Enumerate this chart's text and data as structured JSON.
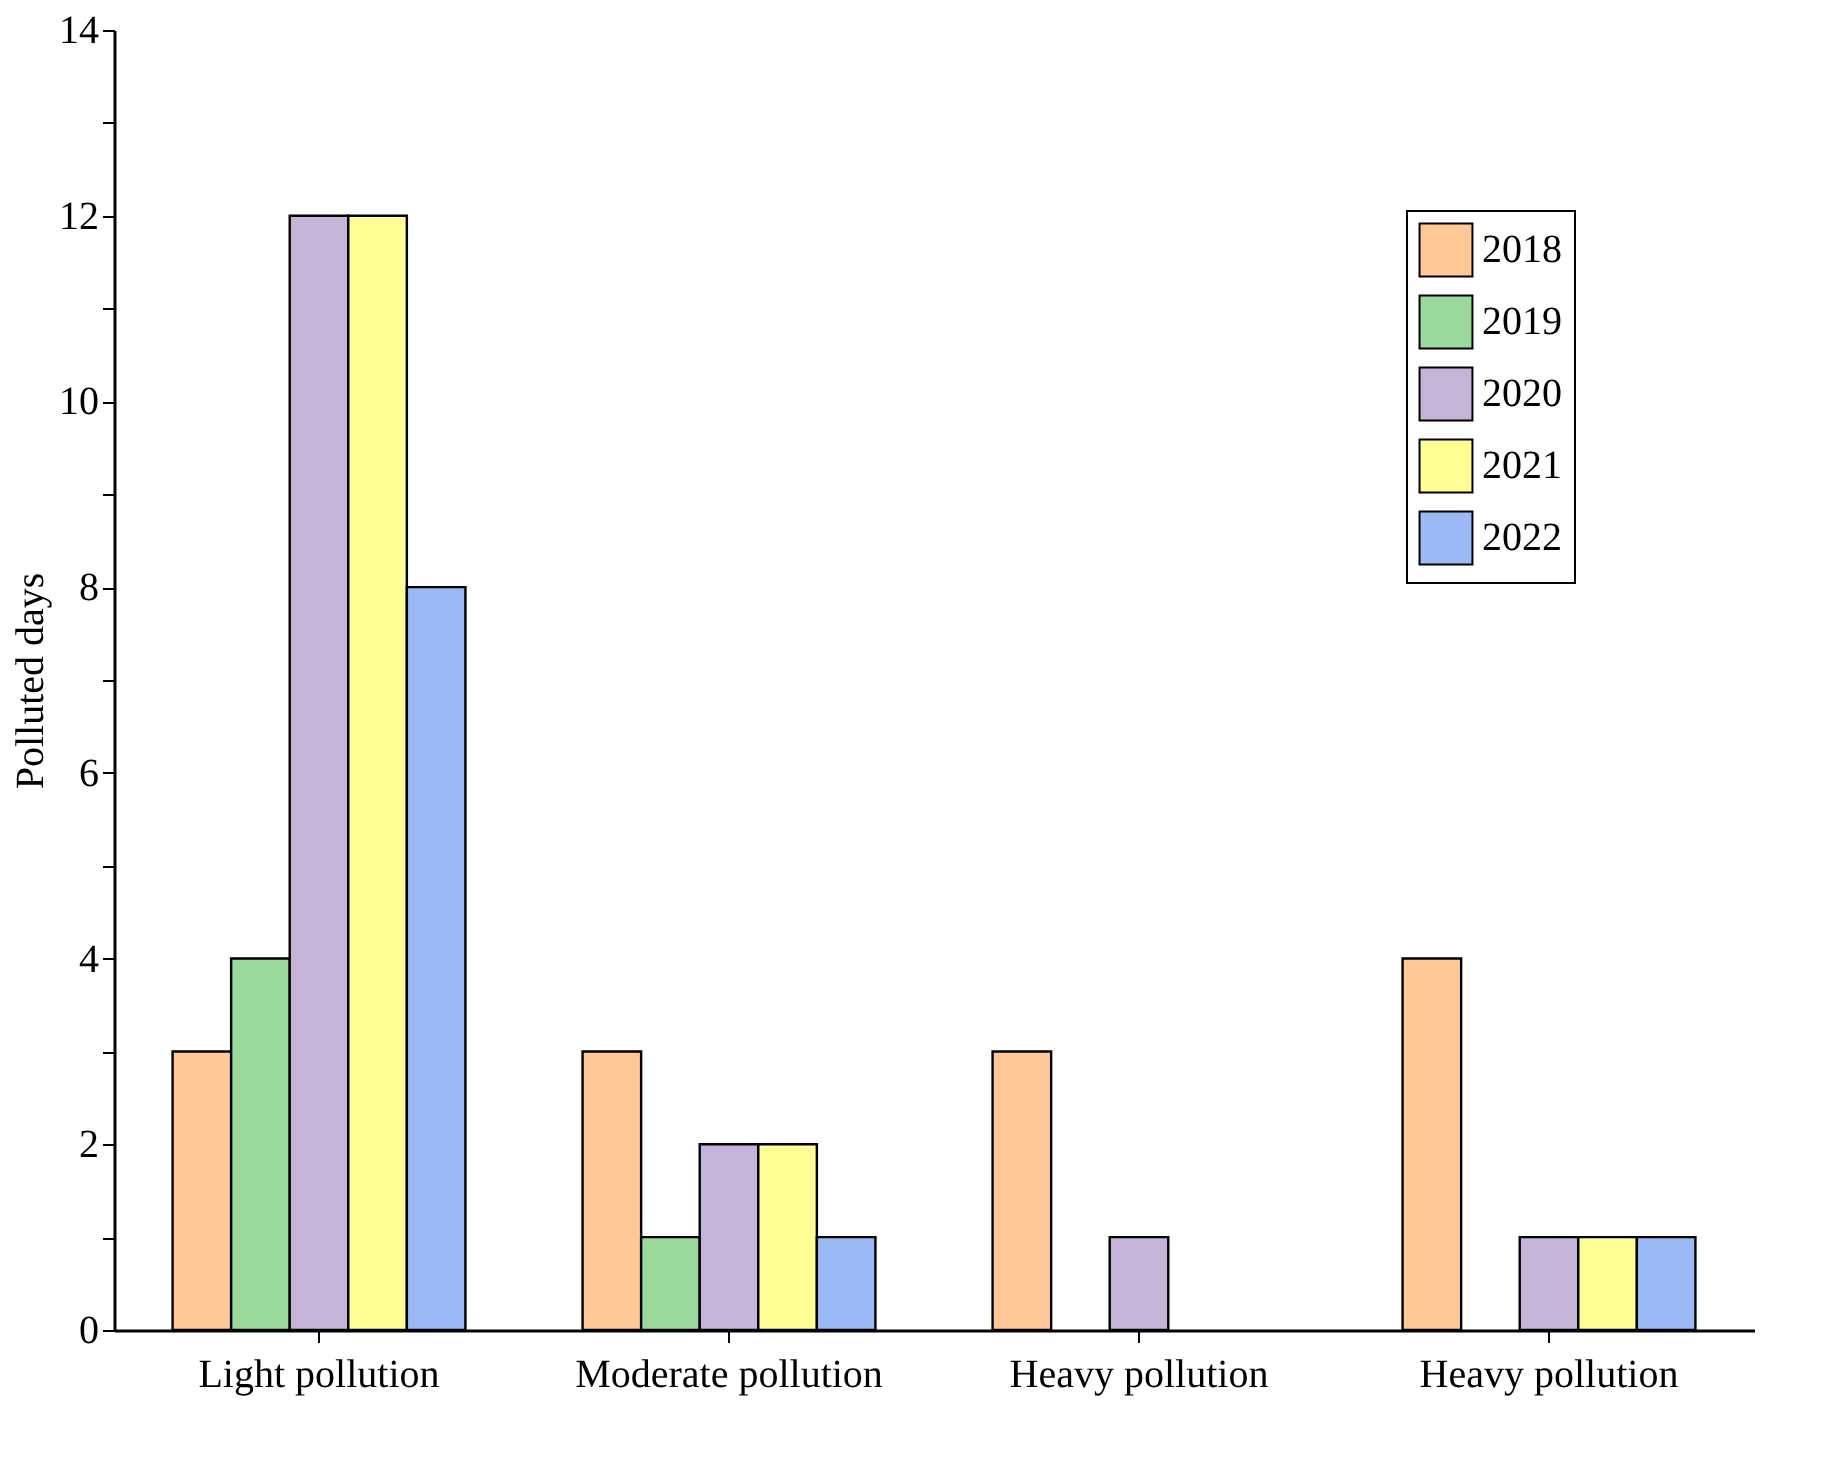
{
  "chart_data": {
    "type": "bar",
    "ylabel": "Polluted days",
    "categories": [
      "Light pollution",
      "Moderate pollution",
      "Heavy pollution",
      "Heavy pollution"
    ],
    "series": [
      {
        "name": "2018",
        "color": "#ffc896",
        "values": [
          3,
          3,
          3,
          4
        ]
      },
      {
        "name": "2019",
        "color": "#9bd89b",
        "values": [
          4,
          1,
          0,
          0
        ]
      },
      {
        "name": "2020",
        "color": "#c3b4d8",
        "values": [
          12,
          2,
          1,
          1
        ]
      },
      {
        "name": "2021",
        "color": "#ffff96",
        "values": [
          12,
          2,
          0,
          1
        ]
      },
      {
        "name": "2022",
        "color": "#9bb9f5",
        "values": [
          8,
          1,
          0,
          1
        ]
      }
    ],
    "ylim": [
      0,
      14
    ],
    "yticks": [
      0,
      {
        "value": 1,
        "label": null
      },
      2,
      {
        "value": 3,
        "label": null
      },
      4,
      {
        "value": 5,
        "label": null
      },
      6,
      {
        "value": 7,
        "label": null
      },
      8,
      {
        "value": 9,
        "label": null
      },
      10,
      {
        "value": 11,
        "label": null
      },
      12,
      {
        "value": 13,
        "label": null
      },
      14
    ],
    "legend": "top right",
    "grid": false
  }
}
